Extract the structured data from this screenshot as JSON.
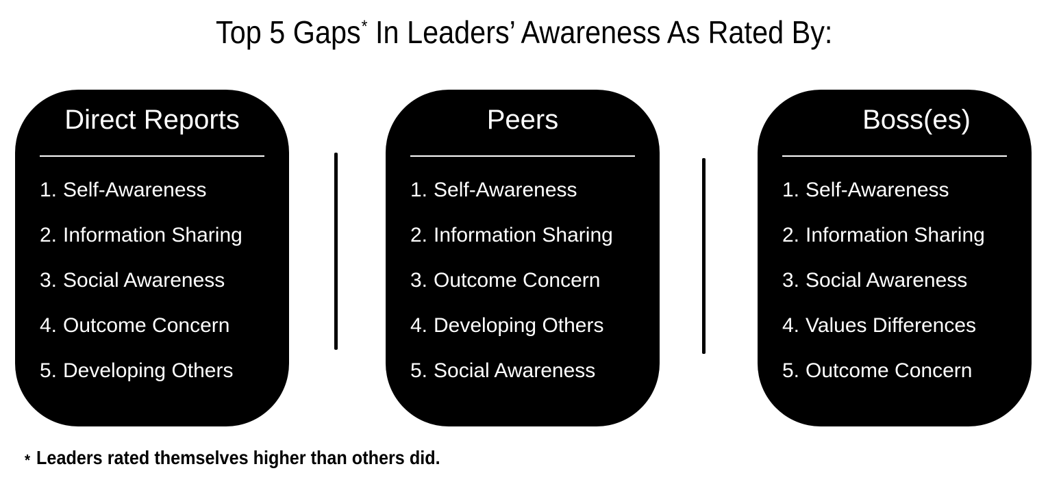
{
  "title": {
    "part1": "Top 5 Gaps",
    "asterisk": "*",
    "part2": " In Leaders’ Awareness As Rated By:"
  },
  "panels": [
    {
      "heading": "Direct Reports",
      "items": [
        {
          "num": "1.",
          "label": "Self-Awareness"
        },
        {
          "num": "2.",
          "label": "Information Sharing"
        },
        {
          "num": "3.",
          "label": "Social Awareness"
        },
        {
          "num": "4.",
          "label": "Outcome Concern"
        },
        {
          "num": "5.",
          "label": "Developing Others"
        }
      ]
    },
    {
      "heading": "Peers",
      "items": [
        {
          "num": "1.",
          "label": "Self-Awareness"
        },
        {
          "num": "2.",
          "label": "Information Sharing"
        },
        {
          "num": "3.",
          "label": "Outcome Concern"
        },
        {
          "num": "4.",
          "label": "Developing Others"
        },
        {
          "num": "5.",
          "label": "Social Awareness"
        }
      ]
    },
    {
      "heading": "Boss(es)",
      "items": [
        {
          "num": "1.",
          "label": "Self-Awareness"
        },
        {
          "num": "2.",
          "label": "Information Sharing"
        },
        {
          "num": "3.",
          "label": "Social Awareness"
        },
        {
          "num": "4.",
          "label": "Values Differences"
        },
        {
          "num": "5.",
          "label": "Outcome Concern"
        }
      ]
    }
  ],
  "footnote": {
    "marker": "*",
    "text": "Leaders rated themselves higher than others did."
  },
  "colors": {
    "page_bg": "#ffffff",
    "panel_bg": "#000000",
    "panel_text": "#ffffff",
    "title_text": "#000000",
    "divider": "#000000"
  }
}
